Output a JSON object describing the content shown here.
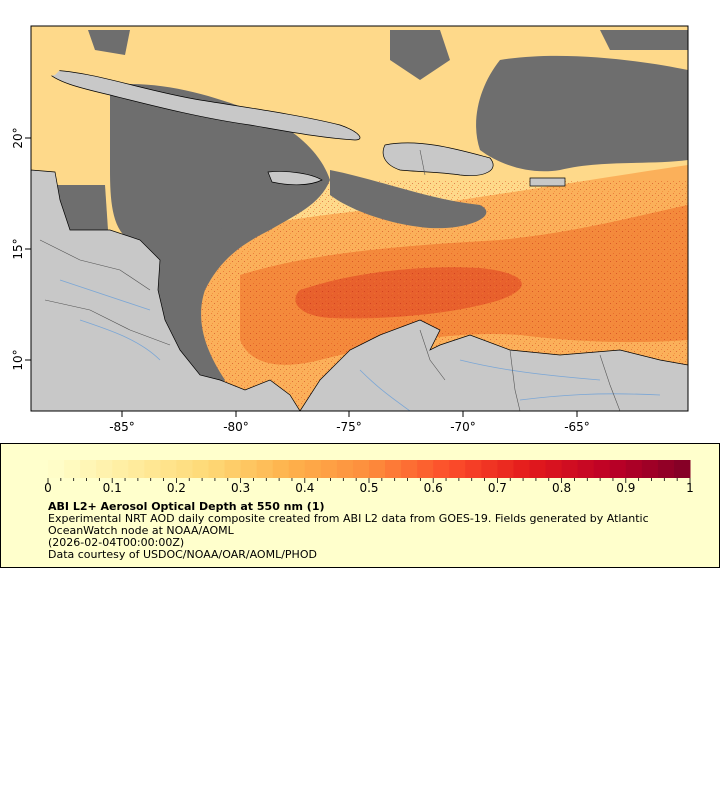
{
  "map": {
    "x_ticks": [
      "-85°",
      "-80°",
      "-75°",
      "-70°",
      "-65°"
    ],
    "y_ticks": [
      "20°",
      "15°",
      "10°"
    ],
    "colors": {
      "land": "#c8c8c8",
      "no_data": "#6e6e6e",
      "coast": "#000000",
      "rivers": "#7aa6d6",
      "borders": "#555555"
    }
  },
  "legend": {
    "colorbar": {
      "min": 0,
      "max": 1,
      "tick_labels": [
        "0",
        "0.1",
        "0.2",
        "0.3",
        "0.4",
        "0.5",
        "0.6",
        "0.7",
        "0.8",
        "0.9",
        "1"
      ],
      "colors": [
        "#ffffcc",
        "#ffeda0",
        "#fed976",
        "#feb24c",
        "#fd8d3c",
        "#fc4e2a",
        "#e31a1c",
        "#bd0026",
        "#800026"
      ]
    },
    "title": "ABI L2+ Aerosol Optical Depth at 550 nm (1)",
    "description": "Experimental NRT AOD daily composite created from ABI L2 data from GOES-19. Fields generated by Atlantic OceanWatch node at NOAA/AOML",
    "time": "(2026-02-04T00:00:00Z)",
    "credit": "Data courtesy of USDOC/NOAA/OAR/AOML/PHOD"
  }
}
